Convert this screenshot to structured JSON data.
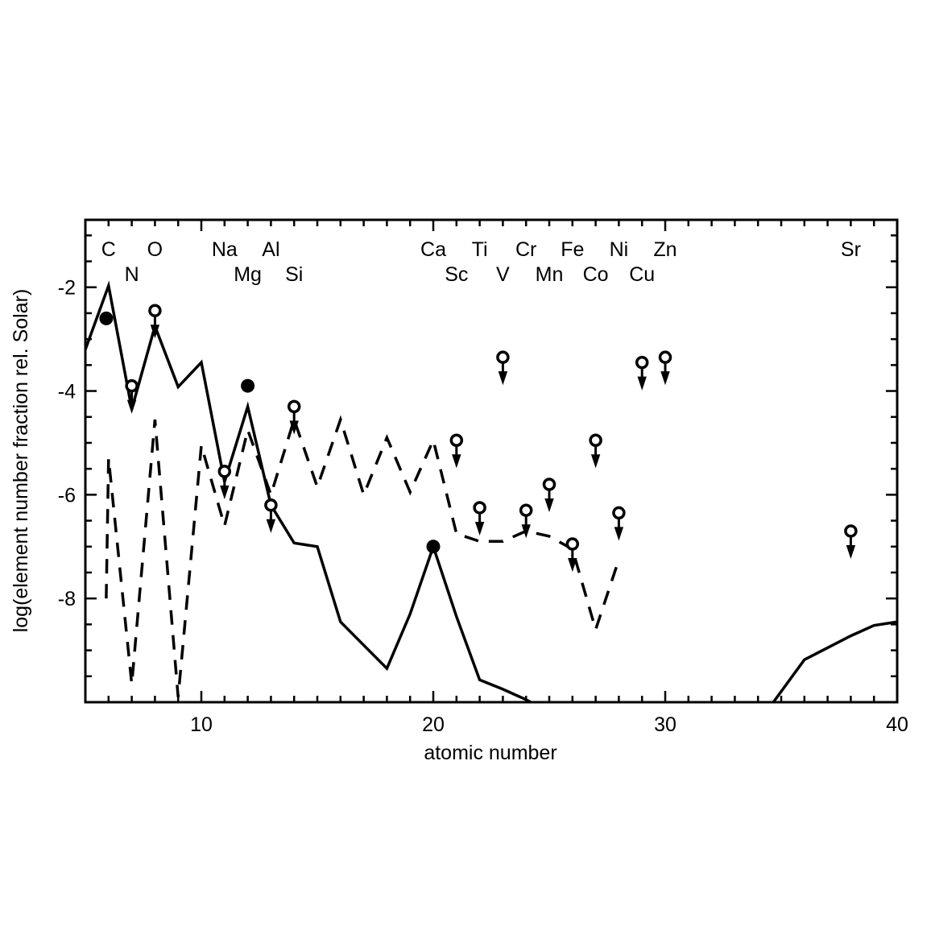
{
  "chart_data": {
    "type": "line",
    "title": "",
    "xlabel": "atomic number",
    "ylabel": "log(element number fraction rel. Solar)",
    "xlim": [
      5,
      40
    ],
    "ylim": [
      -10,
      -0.7
    ],
    "grid": false,
    "x_ticks": [
      10,
      20,
      30,
      40
    ],
    "y_ticks": [
      -2,
      -4,
      -6,
      -8
    ],
    "element_labels_row1": [
      {
        "text": "C",
        "x": 6
      },
      {
        "text": "O",
        "x": 8
      },
      {
        "text": "Na",
        "x": 11
      },
      {
        "text": "Al",
        "x": 13
      },
      {
        "text": "Ca",
        "x": 20
      },
      {
        "text": "Ti",
        "x": 22
      },
      {
        "text": "Cr",
        "x": 24
      },
      {
        "text": "Fe",
        "x": 26
      },
      {
        "text": "Ni",
        "x": 28
      },
      {
        "text": "Zn",
        "x": 30
      },
      {
        "text": "Sr",
        "x": 38
      }
    ],
    "element_labels_row2": [
      {
        "text": "N",
        "x": 7
      },
      {
        "text": "Mg",
        "x": 12
      },
      {
        "text": "Si",
        "x": 14
      },
      {
        "text": "Sc",
        "x": 21
      },
      {
        "text": "V",
        "x": 23
      },
      {
        "text": "Mn",
        "x": 25
      },
      {
        "text": "Co",
        "x": 27
      },
      {
        "text": "Cu",
        "x": 29
      }
    ],
    "series": [
      {
        "style": "solid",
        "segments": [
          {
            "x": [
              5,
              6,
              7,
              8,
              9,
              10,
              11,
              12,
              13,
              14,
              15,
              16,
              17,
              18,
              19,
              20,
              21,
              22,
              23,
              24,
              25
            ],
            "y": [
              -3.2,
              -1.97,
              -4.35,
              -2.75,
              -3.92,
              -3.45,
              -5.75,
              -4.3,
              -6.2,
              -6.93,
              -7.0,
              -8.45,
              -8.9,
              -9.35,
              -8.3,
              -7.0,
              -8.35,
              -9.57,
              -9.75,
              -9.95,
              -10.2
            ]
          },
          {
            "x": [
              34.5,
              36,
              37,
              38,
              39,
              40
            ],
            "y": [
              -10.1,
              -9.18,
              -8.95,
              -8.72,
              -8.52,
              -8.45
            ]
          }
        ]
      },
      {
        "style": "dashed",
        "segments": [
          {
            "x": [
              5.9,
              6,
              7,
              8,
              9,
              10,
              11,
              12,
              13,
              14,
              15,
              16,
              17,
              18,
              19,
              20,
              21,
              22,
              23,
              24,
              25,
              26,
              27,
              28
            ],
            "y": [
              -8.0,
              -5.3,
              -9.65,
              -4.55,
              -9.9,
              -5.05,
              -6.6,
              -4.75,
              -6.0,
              -4.55,
              -5.85,
              -4.55,
              -6.0,
              -4.9,
              -5.95,
              -4.95,
              -6.75,
              -6.9,
              -6.9,
              -6.7,
              -6.8,
              -7.05,
              -8.6,
              -7.25
            ]
          }
        ]
      }
    ],
    "detections": [
      {
        "element": "C",
        "x": 5.9,
        "y": -2.6
      },
      {
        "element": "Mg",
        "x": 12,
        "y": -3.9
      },
      {
        "element": "Ca",
        "x": 20,
        "y": -7.0
      }
    ],
    "upper_limits": [
      {
        "element": "N",
        "x": 7,
        "y": -3.9
      },
      {
        "element": "O",
        "x": 8,
        "y": -2.45
      },
      {
        "element": "Na",
        "x": 11,
        "y": -5.55
      },
      {
        "element": "Al",
        "x": 13,
        "y": -6.2
      },
      {
        "element": "Si",
        "x": 14,
        "y": -4.3
      },
      {
        "element": "Sc",
        "x": 21,
        "y": -4.95
      },
      {
        "element": "Ti",
        "x": 22,
        "y": -6.25
      },
      {
        "element": "V",
        "x": 23,
        "y": -3.35
      },
      {
        "element": "Cr",
        "x": 24,
        "y": -6.3
      },
      {
        "element": "Mn",
        "x": 25,
        "y": -5.8
      },
      {
        "element": "Fe",
        "x": 26,
        "y": -6.95
      },
      {
        "element": "Co",
        "x": 27,
        "y": -4.95
      },
      {
        "element": "Ni",
        "x": 28,
        "y": -6.35
      },
      {
        "element": "Cu",
        "x": 29,
        "y": -3.45
      },
      {
        "element": "Zn",
        "x": 30,
        "y": -3.35
      },
      {
        "element": "Sr",
        "x": 38,
        "y": -6.7
      }
    ]
  }
}
